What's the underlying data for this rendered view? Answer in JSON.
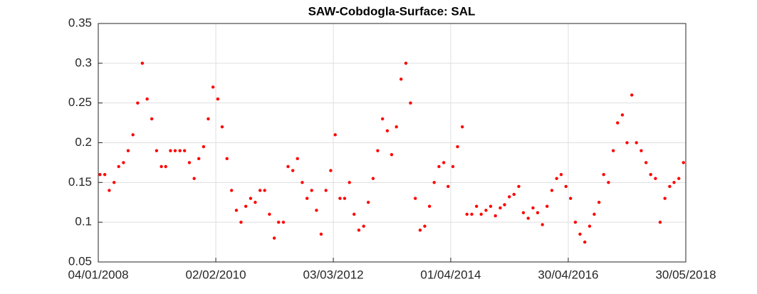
{
  "chart_data": {
    "type": "scatter",
    "title": "SAW-Cobdogla-Surface: SAL",
    "color": "#ff0000",
    "grid": true,
    "x": [
      "2008-01-15",
      "2008-02-15",
      "2008-03-15",
      "2008-04-15",
      "2008-05-15",
      "2008-06-15",
      "2008-07-15",
      "2008-08-15",
      "2008-09-15",
      "2008-10-15",
      "2008-11-15",
      "2008-12-15",
      "2009-01-15",
      "2009-02-15",
      "2009-03-15",
      "2009-04-15",
      "2009-05-15",
      "2009-06-15",
      "2009-07-15",
      "2009-08-15",
      "2009-09-15",
      "2009-10-15",
      "2009-11-15",
      "2009-12-15",
      "2010-01-15",
      "2010-02-15",
      "2010-03-15",
      "2010-04-15",
      "2010-05-15",
      "2010-06-15",
      "2010-07-15",
      "2010-08-15",
      "2010-09-15",
      "2010-10-15",
      "2010-11-15",
      "2010-12-15",
      "2011-01-15",
      "2011-02-15",
      "2011-03-15",
      "2011-04-15",
      "2011-05-15",
      "2011-06-15",
      "2011-07-15",
      "2011-08-15",
      "2011-09-15",
      "2011-10-15",
      "2011-11-15",
      "2011-12-15",
      "2012-01-15",
      "2012-02-15",
      "2012-03-15",
      "2012-04-15",
      "2012-05-15",
      "2012-06-15",
      "2012-07-15",
      "2012-08-15",
      "2012-09-15",
      "2012-10-15",
      "2012-11-15",
      "2012-12-15",
      "2013-01-15",
      "2013-02-15",
      "2013-03-15",
      "2013-04-15",
      "2013-05-15",
      "2013-06-15",
      "2013-07-15",
      "2013-08-15",
      "2013-09-15",
      "2013-10-15",
      "2013-11-15",
      "2013-12-15",
      "2014-01-15",
      "2014-02-15",
      "2014-03-15",
      "2014-04-15",
      "2014-05-15",
      "2014-06-15",
      "2014-07-15",
      "2014-08-15",
      "2014-09-15",
      "2014-10-15",
      "2014-11-15",
      "2014-12-15",
      "2015-01-15",
      "2015-02-15",
      "2015-03-15",
      "2015-04-15",
      "2015-05-15",
      "2015-06-15",
      "2015-07-15",
      "2015-08-15",
      "2015-09-15",
      "2015-10-15",
      "2015-11-15",
      "2015-12-15",
      "2016-01-15",
      "2016-02-15",
      "2016-03-15",
      "2016-04-15",
      "2016-05-15",
      "2016-06-15",
      "2016-07-15",
      "2016-08-15",
      "2016-09-15",
      "2016-10-15",
      "2016-11-15",
      "2016-12-15",
      "2017-01-15",
      "2017-02-15",
      "2017-03-15",
      "2017-04-15",
      "2017-05-15",
      "2017-06-15",
      "2017-07-15",
      "2017-08-15",
      "2017-09-15",
      "2017-10-15",
      "2017-11-15",
      "2017-12-15",
      "2018-01-15",
      "2018-02-15",
      "2018-03-15",
      "2018-04-15",
      "2018-05-15"
    ],
    "values": [
      0.16,
      0.16,
      0.14,
      0.15,
      0.17,
      0.175,
      0.19,
      0.21,
      0.25,
      0.3,
      0.255,
      0.23,
      0.19,
      0.17,
      0.17,
      0.19,
      0.19,
      0.19,
      0.19,
      0.175,
      0.155,
      0.18,
      0.195,
      0.23,
      0.27,
      0.255,
      0.22,
      0.18,
      0.14,
      0.115,
      0.1,
      0.12,
      0.13,
      0.125,
      0.14,
      0.14,
      0.11,
      0.08,
      0.1,
      0.1,
      0.17,
      0.165,
      0.18,
      0.15,
      0.13,
      0.14,
      0.115,
      0.085,
      0.14,
      0.165,
      0.21,
      0.13,
      0.13,
      0.15,
      0.11,
      0.09,
      0.095,
      0.125,
      0.155,
      0.19,
      0.23,
      0.215,
      0.185,
      0.22,
      0.28,
      0.3,
      0.25,
      0.13,
      0.09,
      0.095,
      0.12,
      0.15,
      0.17,
      0.175,
      0.145,
      0.17,
      0.195,
      0.22,
      0.11,
      0.11,
      0.12,
      0.11,
      0.115,
      0.12,
      0.108,
      0.118,
      0.122,
      0.132,
      0.135,
      0.145,
      0.112,
      0.105,
      0.118,
      0.112,
      0.097,
      0.12,
      0.14,
      0.155,
      0.16,
      0.145,
      0.13,
      0.1,
      0.085,
      0.075,
      0.095,
      0.11,
      0.125,
      0.16,
      0.15,
      0.19,
      0.225,
      0.235,
      0.2,
      0.26,
      0.2,
      0.19,
      0.175,
      0.16,
      0.155,
      0.1,
      0.13,
      0.145,
      0.15,
      0.155,
      0.175
    ],
    "xlim": [
      "2008-01-04",
      "2018-05-30"
    ],
    "xticks": [
      {
        "value": "2008-01-04",
        "label": "04/01/2008"
      },
      {
        "value": "2010-02-02",
        "label": "02/02/2010"
      },
      {
        "value": "2012-03-03",
        "label": "03/03/2012"
      },
      {
        "value": "2014-04-01",
        "label": "01/04/2014"
      },
      {
        "value": "2016-04-30",
        "label": "30/04/2016"
      },
      {
        "value": "2018-05-30",
        "label": "30/05/2018"
      }
    ],
    "ylim": [
      0.05,
      0.35
    ],
    "yticks": [
      0.05,
      0.1,
      0.15,
      0.2,
      0.25,
      0.3,
      0.35
    ]
  }
}
